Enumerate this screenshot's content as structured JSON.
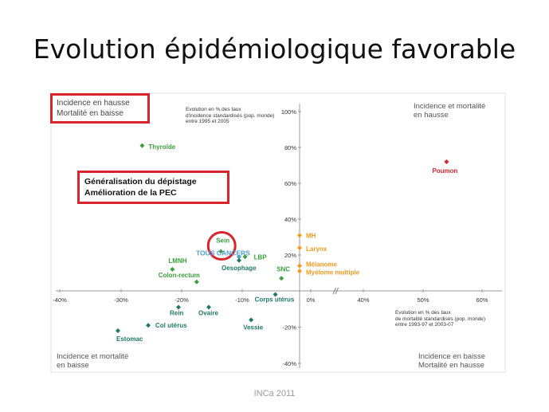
{
  "slide": {
    "title": "Evolution épidémiologique favorable",
    "footer": "INCa 2011"
  },
  "quadrants": {
    "top_left": [
      "Incidence  en hausse",
      "Mortalité en baisse"
    ],
    "top_right": [
      "Incidence  et mortalité",
      "en hausse"
    ],
    "bottom_left": [
      "Incidence  et mortalité",
      "en baisse"
    ],
    "bottom_right": [
      "Incidence  en baisse",
      "Mortalité en hausse"
    ]
  },
  "highlight_box": [
    "Généralisation du dépistage",
    "Amélioration de la PEC"
  ],
  "axis_notes": {
    "y": [
      "Evolution en % des taux",
      "d'incidence standardisés (pop. monde)",
      "entre 1995 et 2005"
    ],
    "x": [
      "Evolution en % des taux",
      "de mortalité standardisés (pop. monde)",
      "entre 1993-97 et 2003-07"
    ]
  },
  "colors": {
    "green": "#3aa03a",
    "teal": "#1e7a62",
    "blue": "#4f9fd0",
    "orange": "#f39a1e",
    "red": "#d8242c",
    "highlight": "#d8242c"
  },
  "chart_data": {
    "type": "scatter",
    "xlabel": "",
    "ylabel": "",
    "xlim": [
      -40,
      60
    ],
    "ylim": [
      -40,
      100
    ],
    "x_ticks": [
      "-40%",
      "-30%",
      "-20%",
      "-10%",
      "0%",
      "40%",
      "50%",
      "60%"
    ],
    "y_ticks": [
      "100%",
      "80%",
      "60%",
      "40%",
      "20%",
      "-20%",
      "-40%"
    ],
    "axis_break": "//",
    "points": [
      {
        "label": "Thyroïde",
        "x": -26,
        "y": 81,
        "color": "green"
      },
      {
        "label": "Poumon",
        "x": 51,
        "y": 72,
        "color": "red"
      },
      {
        "label": "Sein",
        "x": -13,
        "y": 22,
        "color": "green",
        "highlighted": true
      },
      {
        "label": "TOUS CANCERS",
        "x": -10,
        "y": 19,
        "color": "blue"
      },
      {
        "label": "LBP",
        "x": -9,
        "y": 19,
        "color": "green"
      },
      {
        "label": "Oesophage",
        "x": -10,
        "y": 17,
        "color": "teal"
      },
      {
        "label": "LMNH",
        "x": -21,
        "y": 12,
        "color": "green"
      },
      {
        "label": "Colon-rectum",
        "x": -17,
        "y": 5,
        "color": "green"
      },
      {
        "label": "SNC",
        "x": -3,
        "y": 7,
        "color": "green"
      },
      {
        "label": "Corps utérus",
        "x": -4,
        "y": -2,
        "color": "teal"
      },
      {
        "label": "MH",
        "x": 0,
        "y": 31,
        "color": "orange"
      },
      {
        "label": "Larynx",
        "x": 0,
        "y": 24,
        "color": "orange"
      },
      {
        "label": "Mélanome",
        "x": 0,
        "y": 14,
        "color": "orange"
      },
      {
        "label": "Myélome multiple",
        "x": 0,
        "y": 11,
        "color": "orange"
      },
      {
        "label": "Rein",
        "x": -20,
        "y": -9,
        "color": "teal"
      },
      {
        "label": "Ovaire",
        "x": -15,
        "y": -9,
        "color": "teal"
      },
      {
        "label": "Col utérus",
        "x": -25,
        "y": -19,
        "color": "teal"
      },
      {
        "label": "Vessie",
        "x": -8,
        "y": -16,
        "color": "teal"
      },
      {
        "label": "Estomac",
        "x": -30,
        "y": -22,
        "color": "teal"
      }
    ]
  }
}
